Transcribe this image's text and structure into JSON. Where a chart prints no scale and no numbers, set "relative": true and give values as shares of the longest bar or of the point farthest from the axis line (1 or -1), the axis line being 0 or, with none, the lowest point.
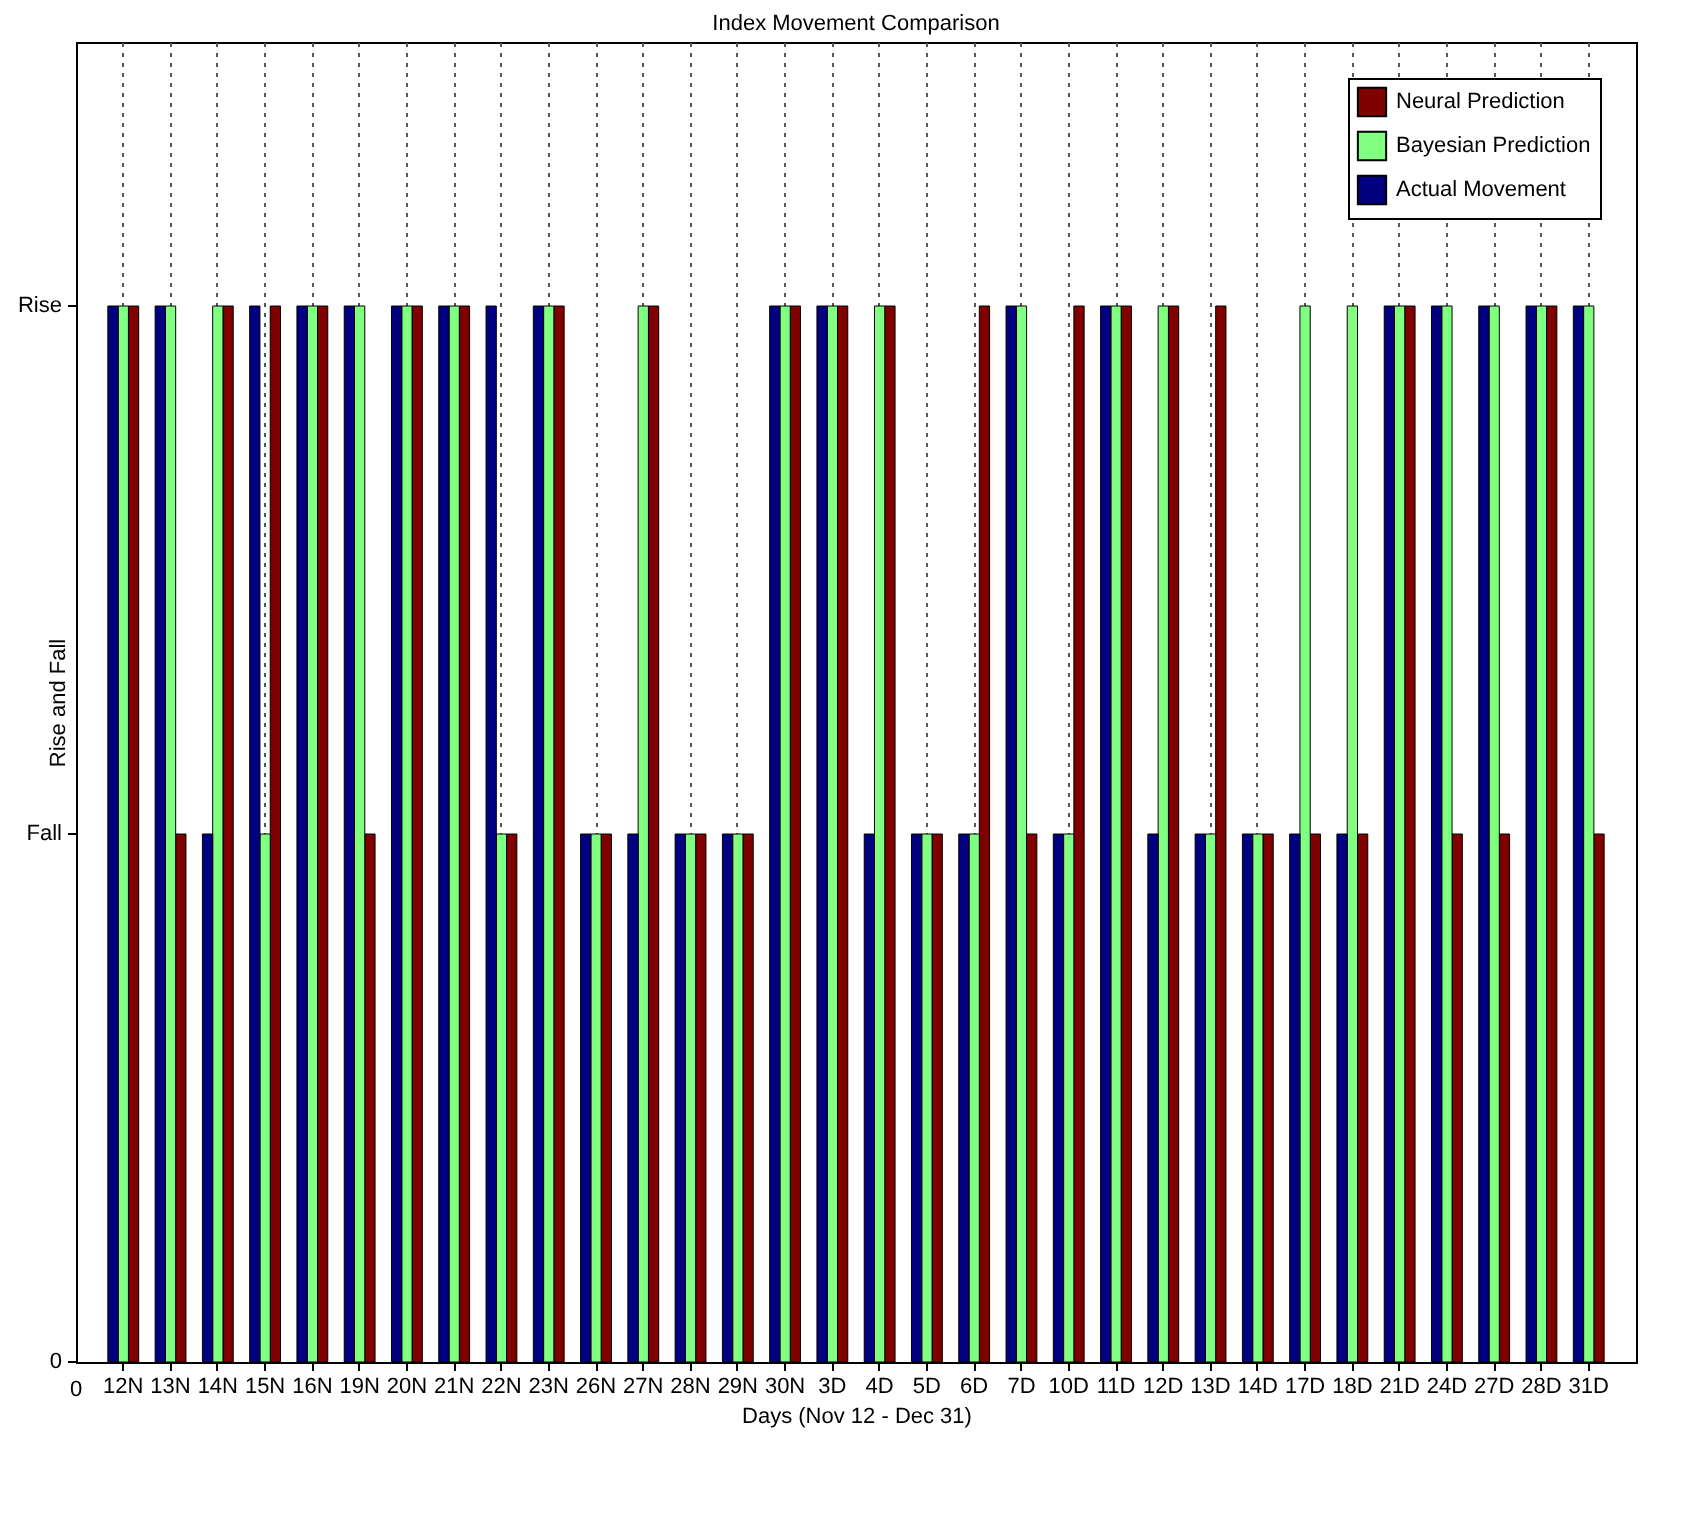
{
  "chart_data": {
    "type": "bar",
    "title": "Index Movement Comparison",
    "xlabel": "Days (Nov 12 - Dec 31)",
    "ylabel": "Rise and Fall",
    "categories": [
      "12N",
      "13N",
      "14N",
      "15N",
      "16N",
      "19N",
      "20N",
      "21N",
      "22N",
      "23N",
      "26N",
      "27N",
      "28N",
      "29N",
      "30N",
      "3D",
      "4D",
      "5D",
      "6D",
      "7D",
      "10D",
      "11D",
      "12D",
      "13D",
      "14D",
      "17D",
      "18D",
      "21D",
      "24D",
      "27D",
      "28D",
      "31D"
    ],
    "relative": true,
    "annotations": [
      "0",
      "0",
      "Fall",
      "Rise"
    ],
    "grid": "x",
    "legend": "top right",
    "series": [
      {
        "name": "Neural Prediction",
        "color": "#800000",
        "values": [
          1,
          0.5,
          1,
          1,
          1,
          0.5,
          1,
          1,
          0.5,
          1,
          0.5,
          1,
          0.5,
          0.5,
          1,
          1,
          1,
          0.5,
          1,
          0.5,
          1,
          1,
          1,
          1,
          0.5,
          0.5,
          0.5,
          1,
          0.5,
          0.5,
          1,
          0.5
        ]
      },
      {
        "name": "Bayesian Prediction",
        "color": "#80ff80",
        "values": [
          1,
          1,
          1,
          0.5,
          1,
          1,
          1,
          1,
          0.5,
          1,
          0.5,
          1,
          0.5,
          0.5,
          1,
          1,
          1,
          0.5,
          0.5,
          1,
          0.5,
          1,
          1,
          0.5,
          0.5,
          1,
          1,
          1,
          1,
          1,
          1,
          1
        ]
      },
      {
        "name": "Actual Movement",
        "color": "#000080",
        "values": [
          1,
          1,
          0.5,
          1,
          1,
          1,
          1,
          1,
          1,
          1,
          0.5,
          0.5,
          0.5,
          0.5,
          1,
          1,
          0.5,
          0.5,
          0.5,
          1,
          0.5,
          1,
          0.5,
          0.5,
          0.5,
          0.5,
          0.5,
          1,
          1,
          1,
          1,
          1
        ]
      }
    ]
  }
}
